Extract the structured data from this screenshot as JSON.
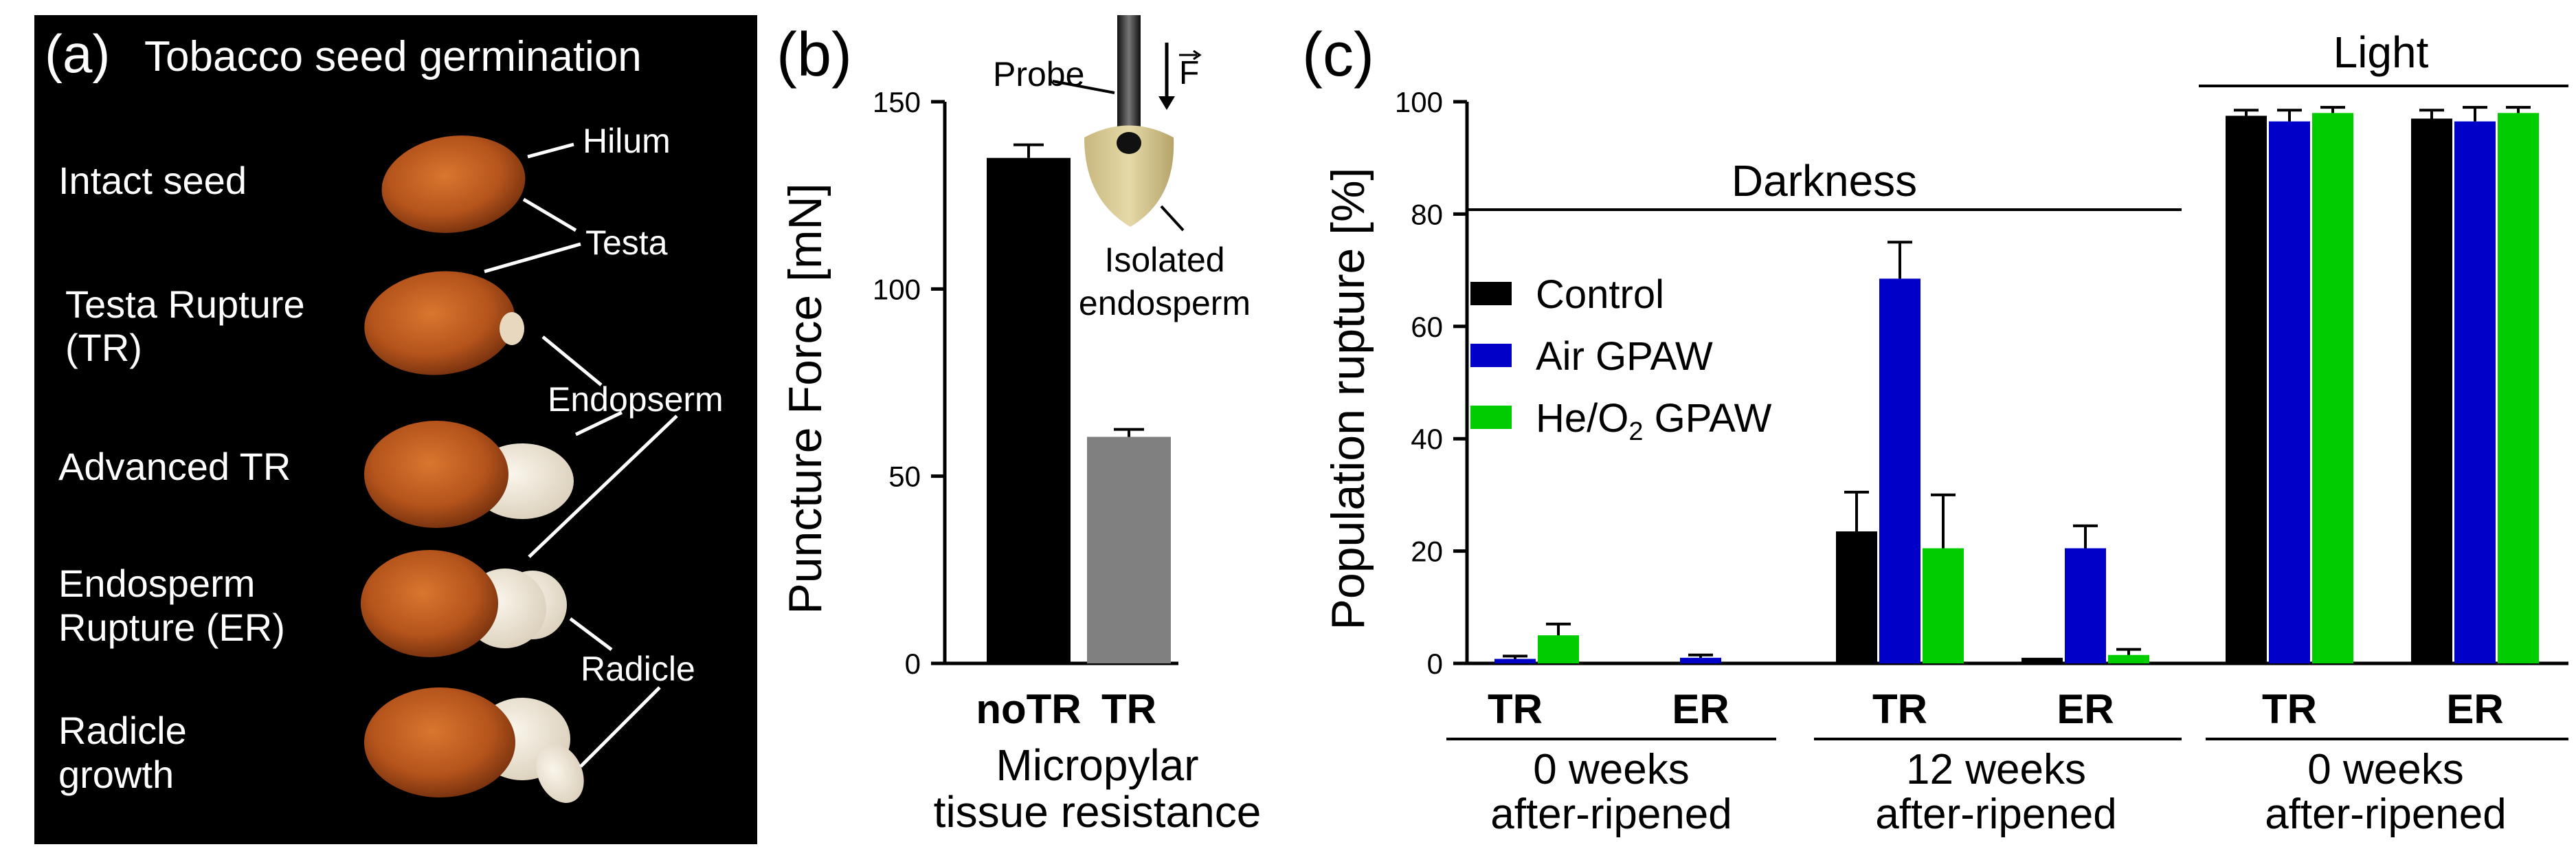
{
  "panel_a": {
    "letter": "(a)",
    "title": "Tobacco seed germination",
    "stages": [
      "Intact seed",
      "Testa Rupture",
      "(TR)",
      "Advanced TR",
      "Endosperm",
      "Rupture (ER)",
      "Radicle",
      "growth"
    ],
    "annotations": {
      "hilum": "Hilum",
      "testa": "Testa",
      "endosperm": "Endopserm",
      "radicle": "Radicle"
    },
    "colors": {
      "background": "#000000",
      "seed_coat": "#b5541c",
      "endosperm": "#efe7d6"
    }
  },
  "panel_b": {
    "letter": "(b)",
    "inset": {
      "probe": "Probe",
      "force": "F",
      "isolated": "Isolated",
      "endosperm": "endosperm"
    },
    "caption": [
      "Micropylar",
      "tissue resistance"
    ]
  },
  "panel_c": {
    "letter": "(c)",
    "darkness_label": "Darkness",
    "light_label": "Light",
    "groups": [
      {
        "line1": "0 weeks",
        "line2": "after-ripened"
      },
      {
        "line1": "12 weeks",
        "line2": "after-ripened"
      },
      {
        "line1": "0 weeks",
        "line2": "after-ripened"
      }
    ]
  },
  "chart_data": [
    {
      "type": "bar",
      "panel": "b",
      "categories": [
        "noTR",
        "TR"
      ],
      "values": [
        135,
        60.5
      ],
      "errors": [
        3.5,
        2
      ],
      "colors": [
        "#000000",
        "#808080"
      ],
      "ylabel": "Puncture Force [mN]",
      "ylim": [
        0,
        150
      ],
      "yticks": [
        "0",
        "50",
        "100",
        "150"
      ],
      "grid": false
    },
    {
      "type": "bar",
      "panel": "c",
      "categories": [
        "TR",
        "ER",
        "TR",
        "ER",
        "TR",
        "ER"
      ],
      "ylabel": "Population rupture [%]",
      "ylim": [
        0,
        100
      ],
      "yticks": [
        "0",
        "20",
        "40",
        "60",
        "80",
        "100"
      ],
      "legend_position": "center-left",
      "grid": false,
      "series": [
        {
          "name": "Control",
          "color": "#000000",
          "values": [
            0,
            0,
            23.5,
            1,
            97.5,
            97
          ],
          "errors": [
            0,
            0,
            7,
            0,
            1,
            1.5
          ]
        },
        {
          "name": "Air GPAW",
          "color": "#0000c8",
          "values": [
            0.8,
            1,
            68.5,
            20.5,
            96.5,
            96.5
          ],
          "errors": [
            0.5,
            0.5,
            6.5,
            4,
            2,
            2.5
          ]
        },
        {
          "name": "He/O2 GPAW",
          "name_parts": [
            "He/O",
            "2",
            " GPAW"
          ],
          "color": "#00cc00",
          "values": [
            5,
            0,
            20.5,
            1.5,
            98,
            98
          ],
          "errors": [
            2,
            0,
            9.5,
            1,
            1,
            1
          ]
        }
      ]
    }
  ]
}
